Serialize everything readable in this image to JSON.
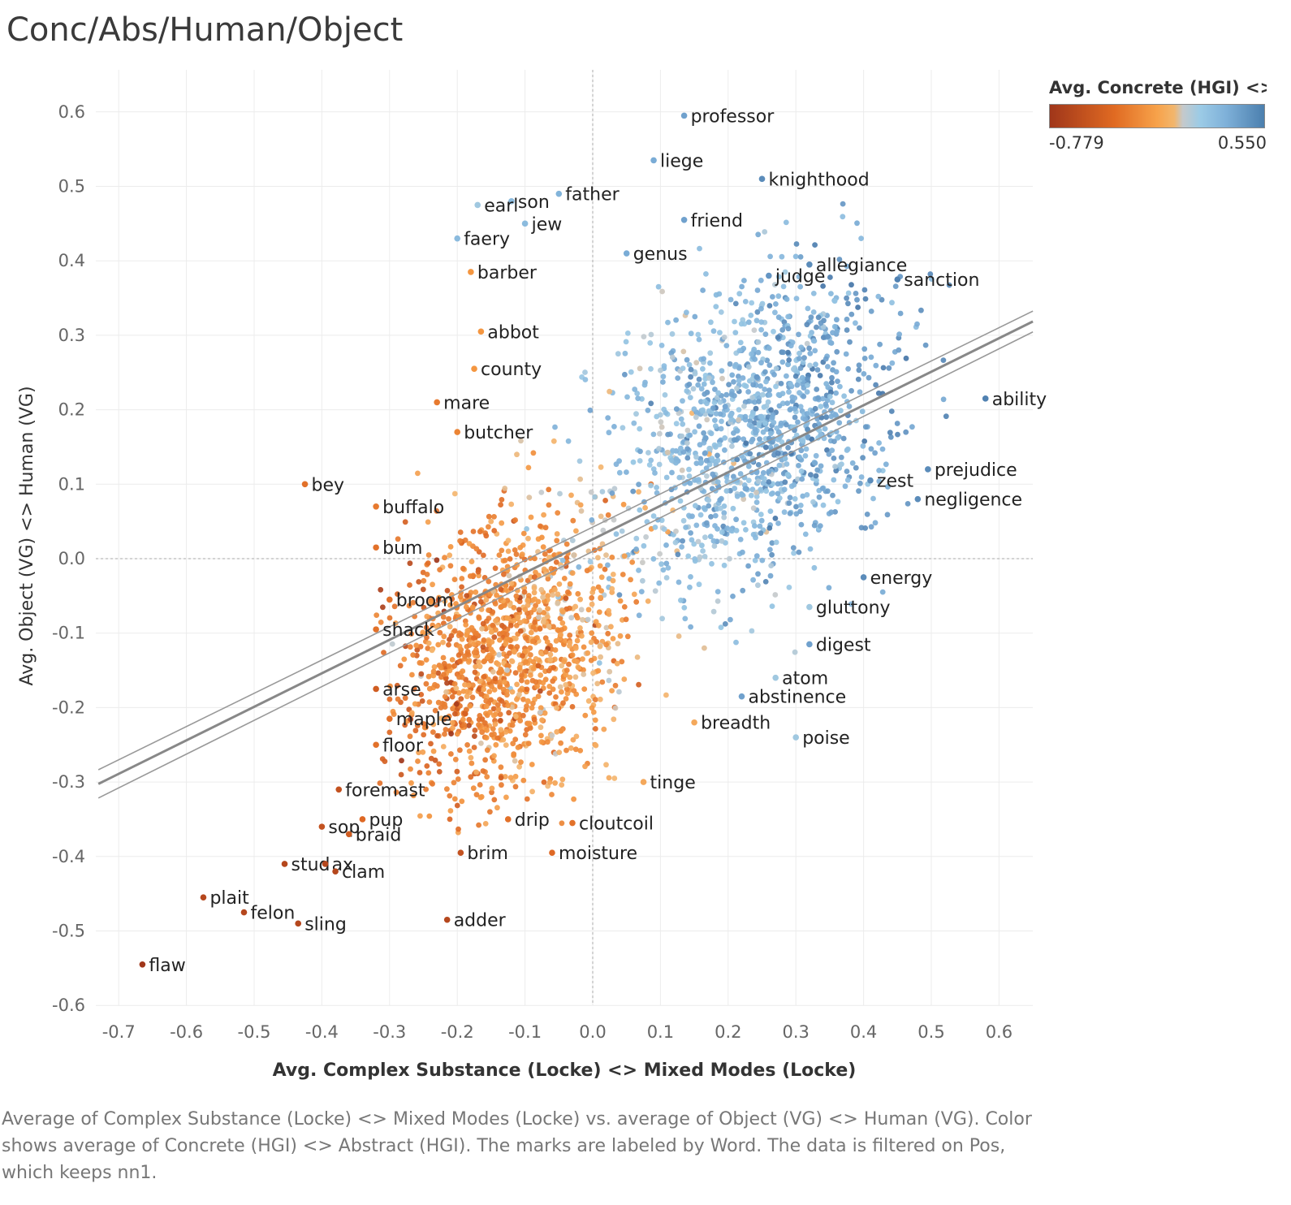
{
  "title": "Conc/Abs/Human/Object",
  "caption": "Average of Complex Substance (Locke) <> Mixed Modes (Locke) vs. average of Object (VG) <> Human (VG).  Color shows average of Concrete (HGI) <> Abstract (HGI).  The marks are labeled by Word. The data is filtered on Pos, which keeps nn1.",
  "legend": {
    "title": "Avg. Concrete (HGI) <> ..",
    "min_label": "-0.779",
    "max_label": "0.550",
    "colors": {
      "low": "#a0361a",
      "mid_low": "#f7a24a",
      "neutral": "#c5c9cb",
      "mid_high": "#8fc1e3",
      "high": "#4b7fae"
    }
  },
  "chart_data": {
    "type": "scatter",
    "xlabel": "Avg. Complex Substance (Locke) <> Mixed Modes (Locke)",
    "ylabel": "Avg. Object (VG) <> Human (VG)",
    "xlim": [
      -0.73,
      0.65
    ],
    "ylim": [
      -0.6,
      0.65
    ],
    "x_ticks": [
      "-0.7",
      "-0.6",
      "-0.5",
      "-0.4",
      "-0.3",
      "-0.2",
      "-0.1",
      "0.0",
      "0.1",
      "0.2",
      "0.3",
      "0.4",
      "0.5",
      "0.6"
    ],
    "y_ticks": [
      "0.6",
      "0.5",
      "0.4",
      "0.3",
      "0.2",
      "0.1",
      "0.0",
      "-0.1",
      "-0.2",
      "-0.3",
      "-0.4",
      "-0.5",
      "-0.6"
    ],
    "grid": true,
    "trend_line": {
      "slope": 0.45,
      "intercept": 0.026
    },
    "labeled_points": [
      {
        "word": "professor",
        "x": 0.135,
        "y": 0.595,
        "c": 0.35
      },
      {
        "word": "liege",
        "x": 0.09,
        "y": 0.535,
        "c": 0.3
      },
      {
        "word": "knighthood",
        "x": 0.25,
        "y": 0.51,
        "c": 0.45
      },
      {
        "word": "son",
        "x": -0.12,
        "y": 0.48,
        "c": 0.2
      },
      {
        "word": "father",
        "x": -0.05,
        "y": 0.49,
        "c": 0.25
      },
      {
        "word": "earl",
        "x": -0.17,
        "y": 0.475,
        "c": 0.1
      },
      {
        "word": "jew",
        "x": -0.1,
        "y": 0.45,
        "c": 0.2
      },
      {
        "word": "friend",
        "x": 0.135,
        "y": 0.455,
        "c": 0.35
      },
      {
        "word": "faery",
        "x": -0.2,
        "y": 0.43,
        "c": 0.2
      },
      {
        "word": "genus",
        "x": 0.05,
        "y": 0.41,
        "c": 0.3
      },
      {
        "word": "allegiance",
        "x": 0.32,
        "y": 0.395,
        "c": 0.45
      },
      {
        "word": "judge",
        "x": 0.26,
        "y": 0.38,
        "c": 0.4
      },
      {
        "word": "barber",
        "x": -0.18,
        "y": 0.385,
        "c": -0.3
      },
      {
        "word": "sanction",
        "x": 0.45,
        "y": 0.375,
        "c": 0.5
      },
      {
        "word": "abbot",
        "x": -0.165,
        "y": 0.305,
        "c": -0.3
      },
      {
        "word": "county",
        "x": -0.175,
        "y": 0.255,
        "c": -0.3
      },
      {
        "word": "mare",
        "x": -0.23,
        "y": 0.21,
        "c": -0.45
      },
      {
        "word": "butcher",
        "x": -0.2,
        "y": 0.17,
        "c": -0.4
      },
      {
        "word": "ability",
        "x": 0.58,
        "y": 0.215,
        "c": 0.5
      },
      {
        "word": "prejudice",
        "x": 0.495,
        "y": 0.12,
        "c": 0.45
      },
      {
        "word": "zest",
        "x": 0.41,
        "y": 0.105,
        "c": 0.45
      },
      {
        "word": "negligence",
        "x": 0.48,
        "y": 0.08,
        "c": 0.45
      },
      {
        "word": "buffalo",
        "x": -0.32,
        "y": 0.07,
        "c": -0.45
      },
      {
        "word": "bey",
        "x": -0.425,
        "y": 0.1,
        "c": -0.5
      },
      {
        "word": "bum",
        "x": -0.32,
        "y": 0.015,
        "c": -0.5
      },
      {
        "word": "energy",
        "x": 0.4,
        "y": -0.025,
        "c": 0.45
      },
      {
        "word": "broom",
        "x": -0.3,
        "y": -0.055,
        "c": -0.5
      },
      {
        "word": "gluttony",
        "x": 0.32,
        "y": -0.065,
        "c": 0.1
      },
      {
        "word": "shack",
        "x": -0.32,
        "y": -0.095,
        "c": -0.5
      },
      {
        "word": "digest",
        "x": 0.32,
        "y": -0.115,
        "c": 0.35
      },
      {
        "word": "atom",
        "x": 0.27,
        "y": -0.16,
        "c": 0.1
      },
      {
        "word": "arse",
        "x": -0.32,
        "y": -0.175,
        "c": -0.6
      },
      {
        "word": "abstinence",
        "x": 0.22,
        "y": -0.185,
        "c": 0.35
      },
      {
        "word": "maple",
        "x": -0.3,
        "y": -0.215,
        "c": -0.5
      },
      {
        "word": "breadth",
        "x": 0.15,
        "y": -0.22,
        "c": -0.2
      },
      {
        "word": "poise",
        "x": 0.3,
        "y": -0.24,
        "c": 0.1
      },
      {
        "word": "floor",
        "x": -0.32,
        "y": -0.25,
        "c": -0.5
      },
      {
        "word": "tinge",
        "x": 0.075,
        "y": -0.3,
        "c": -0.2
      },
      {
        "word": "foremast",
        "x": -0.375,
        "y": -0.31,
        "c": -0.65
      },
      {
        "word": "sop",
        "x": -0.4,
        "y": -0.36,
        "c": -0.65
      },
      {
        "word": "pup",
        "x": -0.34,
        "y": -0.35,
        "c": -0.55
      },
      {
        "word": "drip",
        "x": -0.125,
        "y": -0.35,
        "c": -0.5
      },
      {
        "word": "cloutcoil",
        "x": -0.03,
        "y": -0.355,
        "c": -0.5
      },
      {
        "word": "braid",
        "x": -0.36,
        "y": -0.37,
        "c": -0.6
      },
      {
        "word": "brim",
        "x": -0.195,
        "y": -0.395,
        "c": -0.65
      },
      {
        "word": "moisture",
        "x": -0.06,
        "y": -0.395,
        "c": -0.55
      },
      {
        "word": "stud",
        "x": -0.455,
        "y": -0.41,
        "c": -0.7
      },
      {
        "word": "ax",
        "x": -0.395,
        "y": -0.41,
        "c": -0.7
      },
      {
        "word": "clam",
        "x": -0.38,
        "y": -0.42,
        "c": -0.7
      },
      {
        "word": "plait",
        "x": -0.575,
        "y": -0.455,
        "c": -0.7
      },
      {
        "word": "felon",
        "x": -0.515,
        "y": -0.475,
        "c": -0.7
      },
      {
        "word": "sling",
        "x": -0.435,
        "y": -0.49,
        "c": -0.7
      },
      {
        "word": "adder",
        "x": -0.215,
        "y": -0.485,
        "c": -0.7
      },
      {
        "word": "flaw",
        "x": -0.665,
        "y": -0.545,
        "c": -0.779
      }
    ]
  }
}
